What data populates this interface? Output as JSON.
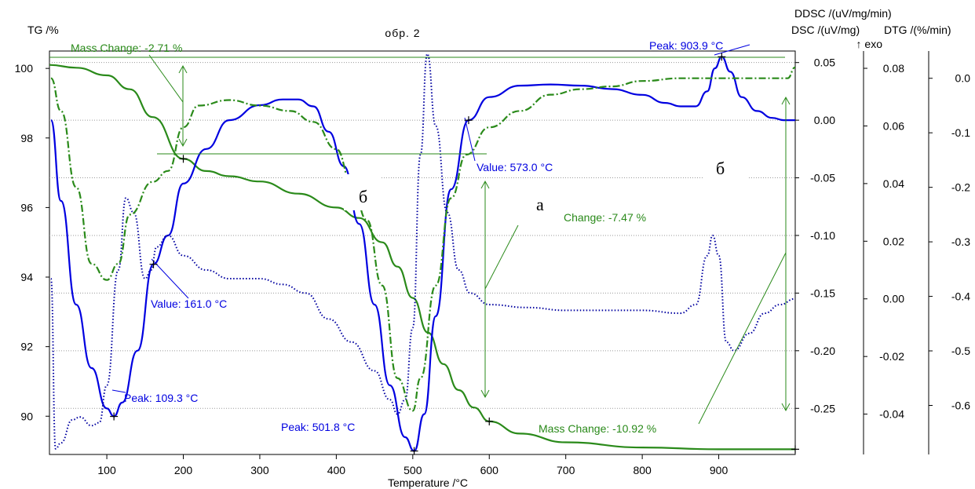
{
  "chart_data": {
    "type": "line",
    "title": "обр. 2",
    "xlabel": "Temperature /°C",
    "xlim": [
      25,
      1000
    ],
    "x_ticks": [
      100,
      200,
      300,
      400,
      500,
      600,
      700,
      800,
      900
    ],
    "axes": {
      "tg": {
        "label": "TG /%",
        "range": [
          88.9,
          100.5
        ],
        "ticks": [
          90,
          92,
          94,
          96,
          98,
          100
        ]
      },
      "dsc": {
        "label": "DSC /(uV/mg)",
        "exo": "↑ exo",
        "range": [
          -0.29,
          0.06
        ],
        "ticks": [
          "0.05",
          "0.00",
          "-0.05",
          "-0.10",
          "-0.15",
          "-0.20",
          "-0.25"
        ]
      },
      "ddsc": {
        "label": "DDSC /(uV/mg/min)",
        "range": [
          -0.054,
          0.086
        ],
        "ticks": [
          "0.08",
          "0.06",
          "0.04",
          "0.02",
          "0.00",
          "-0.02",
          "-0.04"
        ]
      },
      "dtg": {
        "label": "DTG /(%/min)",
        "range": [
          -0.69,
          0.05
        ],
        "ticks": [
          "0.0",
          "-0.1",
          "-0.2",
          "-0.3",
          "-0.4",
          "-0.5",
          "-0.6"
        ]
      }
    },
    "series": [
      {
        "name": "TG",
        "axis": "tg",
        "color": "#2a8a1a",
        "style": "solid",
        "points": [
          [
            25,
            100.1
          ],
          [
            60,
            100.02
          ],
          [
            100,
            99.8
          ],
          [
            130,
            99.4
          ],
          [
            160,
            98.6
          ],
          [
            200,
            97.4
          ],
          [
            230,
            97.05
          ],
          [
            260,
            96.9
          ],
          [
            300,
            96.75
          ],
          [
            350,
            96.4
          ],
          [
            400,
            96.0
          ],
          [
            430,
            95.7
          ],
          [
            460,
            95.0
          ],
          [
            480,
            94.3
          ],
          [
            500,
            93.4
          ],
          [
            520,
            92.4
          ],
          [
            540,
            91.5
          ],
          [
            560,
            90.75
          ],
          [
            580,
            90.25
          ],
          [
            600,
            89.85
          ],
          [
            640,
            89.5
          ],
          [
            700,
            89.25
          ],
          [
            800,
            89.1
          ],
          [
            900,
            89.05
          ],
          [
            1000,
            89.05
          ]
        ]
      },
      {
        "name": "DSC",
        "axis": "dsc",
        "color": "#0000e0",
        "style": "solid",
        "points": [
          [
            27,
            0.0
          ],
          [
            40,
            -0.07
          ],
          [
            60,
            -0.16
          ],
          [
            80,
            -0.215
          ],
          [
            100,
            -0.25
          ],
          [
            109.3,
            -0.257
          ],
          [
            120,
            -0.245
          ],
          [
            140,
            -0.2
          ],
          [
            161,
            -0.125
          ],
          [
            180,
            -0.1
          ],
          [
            200,
            -0.055
          ],
          [
            230,
            -0.025
          ],
          [
            260,
            0.0
          ],
          [
            300,
            0.013
          ],
          [
            330,
            0.018
          ],
          [
            350,
            0.018
          ],
          [
            370,
            0.012
          ],
          [
            390,
            -0.01
          ],
          [
            410,
            -0.04
          ],
          [
            430,
            -0.09
          ],
          [
            450,
            -0.16
          ],
          [
            470,
            -0.23
          ],
          [
            490,
            -0.275
          ],
          [
            501.8,
            -0.287
          ],
          [
            515,
            -0.255
          ],
          [
            530,
            -0.17
          ],
          [
            550,
            -0.06
          ],
          [
            573,
            0.0
          ],
          [
            600,
            0.02
          ],
          [
            640,
            0.03
          ],
          [
            680,
            0.031
          ],
          [
            720,
            0.03
          ],
          [
            760,
            0.027
          ],
          [
            800,
            0.022
          ],
          [
            830,
            0.015
          ],
          [
            850,
            0.012
          ],
          [
            870,
            0.012
          ],
          [
            885,
            0.025
          ],
          [
            895,
            0.045
          ],
          [
            903.9,
            0.055
          ],
          [
            915,
            0.042
          ],
          [
            930,
            0.02
          ],
          [
            950,
            0.008
          ],
          [
            970,
            0.002
          ],
          [
            985,
            0.0
          ],
          [
            1000,
            0.0
          ]
        ]
      },
      {
        "name": "DDSC",
        "axis": "ddsc",
        "color": "#0000a0",
        "style": "dotted",
        "points": [
          [
            27,
            0.007
          ],
          [
            33,
            -0.052
          ],
          [
            40,
            -0.05
          ],
          [
            55,
            -0.042
          ],
          [
            65,
            -0.041
          ],
          [
            80,
            -0.044
          ],
          [
            90,
            -0.043
          ],
          [
            100,
            -0.03
          ],
          [
            115,
            0.01
          ],
          [
            125,
            0.035
          ],
          [
            135,
            0.03
          ],
          [
            150,
            0.007
          ],
          [
            158,
            0.01
          ],
          [
            165,
            0.018
          ],
          [
            180,
            0.022
          ],
          [
            200,
            0.015
          ],
          [
            230,
            0.01
          ],
          [
            260,
            0.007
          ],
          [
            300,
            0.007
          ],
          [
            330,
            0.005
          ],
          [
            360,
            0.002
          ],
          [
            390,
            -0.007
          ],
          [
            420,
            -0.015
          ],
          [
            450,
            -0.025
          ],
          [
            470,
            -0.035
          ],
          [
            480,
            -0.04
          ],
          [
            490,
            -0.035
          ],
          [
            500,
            -0.01
          ],
          [
            510,
            0.05
          ],
          [
            519,
            0.085
          ],
          [
            530,
            0.06
          ],
          [
            545,
            0.03
          ],
          [
            560,
            0.01
          ],
          [
            575,
            0.002
          ],
          [
            600,
            -0.002
          ],
          [
            650,
            -0.003
          ],
          [
            700,
            -0.004
          ],
          [
            750,
            -0.004
          ],
          [
            800,
            -0.004
          ],
          [
            850,
            -0.005
          ],
          [
            870,
            -0.002
          ],
          [
            885,
            0.015
          ],
          [
            892,
            0.022
          ],
          [
            900,
            0.015
          ],
          [
            910,
            -0.015
          ],
          [
            920,
            -0.018
          ],
          [
            940,
            -0.012
          ],
          [
            960,
            -0.005
          ],
          [
            980,
            -0.002
          ],
          [
            1000,
            0.0
          ]
        ]
      },
      {
        "name": "DTG",
        "axis": "dtg",
        "color": "#2a8a1a",
        "style": "dashdot",
        "points": [
          [
            27,
            0.0
          ],
          [
            40,
            -0.06
          ],
          [
            60,
            -0.2
          ],
          [
            80,
            -0.34
          ],
          [
            100,
            -0.37
          ],
          [
            115,
            -0.34
          ],
          [
            130,
            -0.25
          ],
          [
            160,
            -0.19
          ],
          [
            180,
            -0.17
          ],
          [
            200,
            -0.09
          ],
          [
            220,
            -0.05
          ],
          [
            260,
            -0.04
          ],
          [
            300,
            -0.05
          ],
          [
            340,
            -0.06
          ],
          [
            370,
            -0.08
          ],
          [
            400,
            -0.13
          ],
          [
            420,
            -0.19
          ],
          [
            440,
            -0.26
          ],
          [
            460,
            -0.38
          ],
          [
            480,
            -0.55
          ],
          [
            500,
            -0.61
          ],
          [
            510,
            -0.55
          ],
          [
            530,
            -0.38
          ],
          [
            550,
            -0.22
          ],
          [
            570,
            -0.14
          ],
          [
            600,
            -0.09
          ],
          [
            640,
            -0.06
          ],
          [
            680,
            -0.03
          ],
          [
            720,
            -0.02
          ],
          [
            760,
            -0.015
          ],
          [
            800,
            -0.005
          ],
          [
            850,
            0.0
          ],
          [
            900,
            0.0
          ],
          [
            950,
            0.0
          ],
          [
            990,
            0.0
          ],
          [
            1000,
            0.02
          ]
        ]
      }
    ],
    "annotations": {
      "mass_change_1": "Mass Change: -2.71 %",
      "mass_change_2": "Change: -7.47 %",
      "mass_change_3": "Mass Change: -10.92 %",
      "peak_1": "Peak: 109.3 °C",
      "peak_2": "Peak: 501.8 °C",
      "peak_3": "Peak: 903.9 °C",
      "value_1": "Value: 161.0 °C",
      "value_2": "Value: 573.0 °C",
      "letter_a": "a",
      "letter_b1": "б",
      "letter_b2": "б"
    }
  }
}
